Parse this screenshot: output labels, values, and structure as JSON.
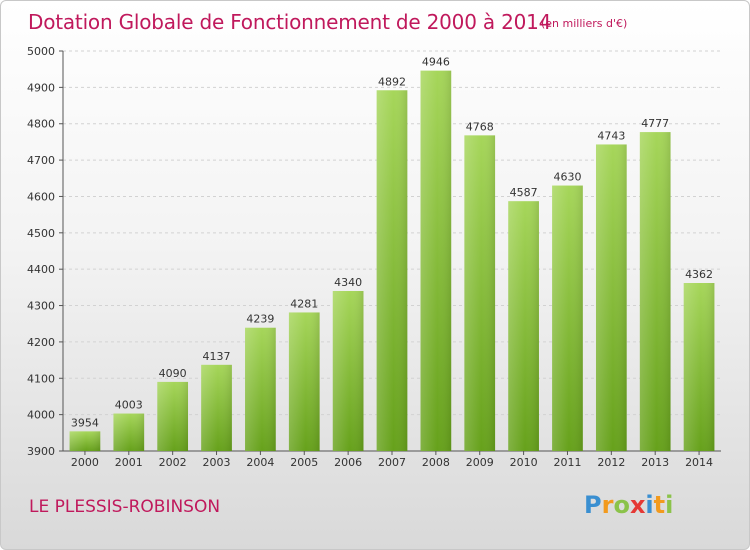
{
  "header": {
    "title": "Dotation Globale de Fonctionnement de 2000 à 2014",
    "subtitle": "(en milliers d'€)"
  },
  "footer": {
    "town": "LE PLESSIS-ROBINSON",
    "logo": "Proxiti"
  },
  "colors": {
    "title": "#c0195c",
    "bar_top": "#a6d65a",
    "bar_bottom": "#66a11b"
  },
  "chart_data": {
    "type": "bar",
    "title": "Dotation Globale de Fonctionnement de 2000 à 2014",
    "subtitle": "(en milliers d'€)",
    "xlabel": "",
    "ylabel": "",
    "categories": [
      "2000",
      "2001",
      "2002",
      "2003",
      "2004",
      "2005",
      "2006",
      "2007",
      "2008",
      "2009",
      "2010",
      "2011",
      "2012",
      "2013",
      "2014"
    ],
    "values": [
      3954,
      4003,
      4090,
      4137,
      4239,
      4281,
      4340,
      4892,
      4946,
      4768,
      4587,
      4630,
      4743,
      4777,
      4362
    ],
    "ylim": [
      3900,
      5000
    ],
    "yticks": [
      3900,
      4000,
      4100,
      4200,
      4300,
      4400,
      4500,
      4600,
      4700,
      4800,
      4900,
      5000
    ],
    "grid": true,
    "legend": "none"
  }
}
